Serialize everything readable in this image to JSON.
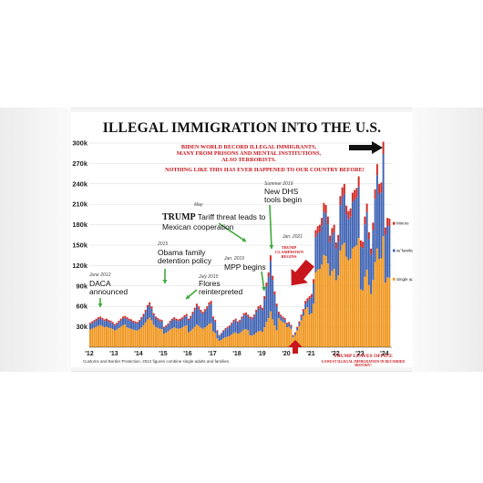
{
  "chart_data": {
    "type": "bar",
    "title": "ILLEGAL IMMIGRATION INTO THE U.S.",
    "subtitle_lines": [
      "BIDEN WORLD RECORD ILLEGAL IMMIGRANTS,",
      "MANY FROM PRISONS AND MENTAL INSTITUTIONS,",
      "ALSO TERRORISTS."
    ],
    "subtitle2": "NOTHING LIKE THIS HAS EVER HAPPENED TO OUR COUNTRY BEFORE!",
    "y_ticks": [
      "30k",
      "60k",
      "90k",
      "120k",
      "150k",
      "180k",
      "210k",
      "240k",
      "270k",
      "300k"
    ],
    "ylim": [
      0,
      300000
    ],
    "x_ticks": [
      "'12",
      "'13",
      "'14",
      "'15",
      "'16",
      "'17",
      "'18",
      "'19",
      "'20",
      "'21",
      "'22",
      "'23",
      "'24"
    ],
    "x_start_year": 2012,
    "x_end_year": 2024.3,
    "stacked": true,
    "series": [
      {
        "name": "Single adults",
        "color": "#f0961e"
      },
      {
        "name": "w families",
        "color": "#3f63b4"
      },
      {
        "name": "Minors",
        "color": "#d22a24"
      }
    ],
    "monthly_totals_thousands": [
      36,
      38,
      40,
      42,
      44,
      45,
      43,
      41,
      42,
      40,
      39,
      37,
      34,
      36,
      39,
      42,
      45,
      46,
      44,
      42,
      41,
      39,
      38,
      37,
      40,
      44,
      49,
      55,
      62,
      66,
      60,
      50,
      45,
      43,
      41,
      40,
      30,
      32,
      35,
      39,
      42,
      44,
      42,
      41,
      42,
      44,
      47,
      49,
      42,
      46,
      52,
      58,
      64,
      60,
      55,
      52,
      56,
      60,
      66,
      68,
      45,
      40,
      25,
      18,
      21,
      25,
      28,
      30,
      32,
      36,
      40,
      42,
      38,
      40,
      45,
      50,
      51,
      48,
      45,
      44,
      48,
      55,
      60,
      62,
      58,
      75,
      95,
      110,
      135,
      105,
      82,
      64,
      52,
      48,
      45,
      43,
      36,
      37,
      33,
      18,
      22,
      30,
      38,
      48,
      56,
      68,
      72,
      75,
      78,
      100,
      172,
      178,
      180,
      190,
      212,
      209,
      192,
      164,
      175,
      180,
      154,
      165,
      222,
      235,
      240,
      208,
      200,
      204,
      227,
      231,
      234,
      251,
      157,
      155,
      192,
      211,
      169,
      145,
      183,
      232,
      269,
      240,
      242,
      302,
      176,
      190,
      189
    ],
    "minors_share_note": "red segment ~6%, blue share varies by period"
  },
  "annotations": {
    "daca_date": "June 2012",
    "daca": "DACA\nannounced",
    "obama_date": "2015",
    "obama": "Obama family\ndetention policy",
    "flores_date": "July 2015",
    "flores": "Flores\nreinterpreted",
    "tariff_date": "May",
    "tariff_trump": "TRUMP",
    "tariff": " Tariff threat leads to\nMexican cooperation",
    "mpp_date": "Jan. 2019",
    "mpp": "MPP begins",
    "dhs_date": "Summer 2019",
    "dhs": "New DHS\ntools begin",
    "jan2021": "Jan. 2021",
    "clampdown": "TRUMP\nCLAMPDOWN\nBEGINS",
    "leaves_title": "TRUMP LEAVES OFFICE",
    "leaves_sub": "LOWEST ILLEGAL IMMIGRATION IN RECORDED HISTORY!"
  },
  "legend_labels": [
    "Minors",
    "w/ families",
    "Single adults"
  ],
  "footnote": "Customs and Border Protection. 2012 figures combine single adults and families.",
  "colors": {
    "orange": "#f0961e",
    "blue": "#3f63b4",
    "red": "#d22a24",
    "accent_red": "#c8161d",
    "arrow_green": "#3faa3a"
  }
}
